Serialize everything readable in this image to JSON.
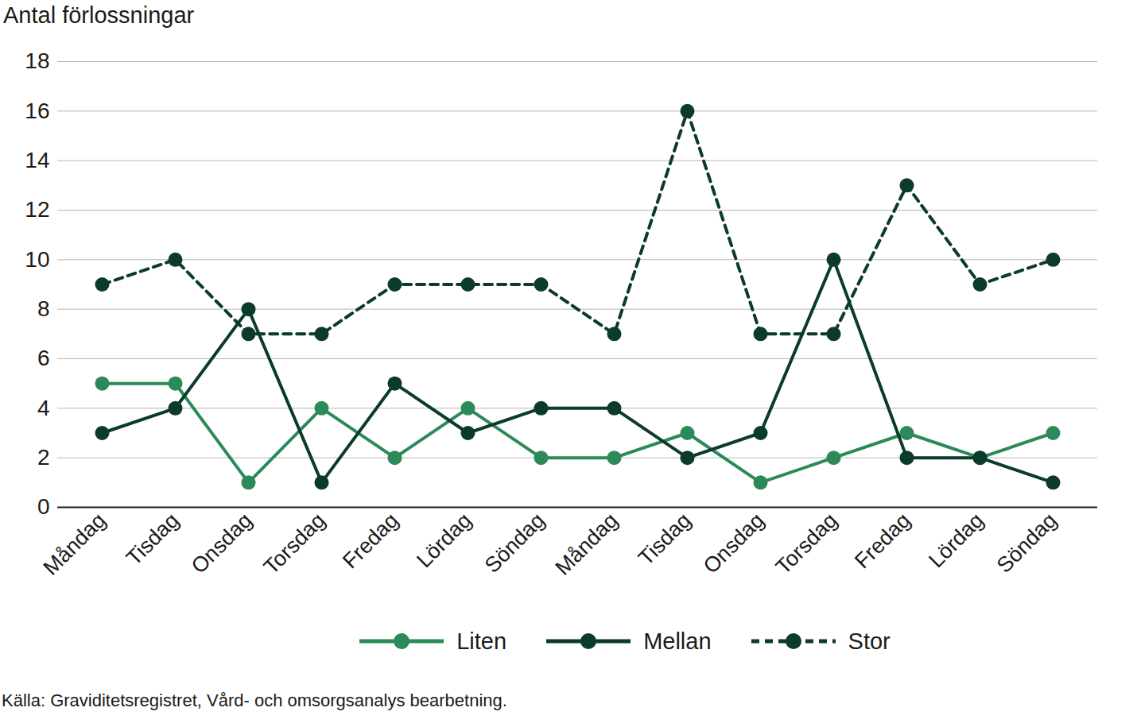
{
  "chart_data": {
    "type": "line",
    "ylabel": "Antal förlossningar",
    "caption": "Källa: Graviditetsregistret, Vård- och omsorgsanalys bearbetning.",
    "categories": [
      "Måndag",
      "Tisdag",
      "Onsdag",
      "Torsdag",
      "Fredag",
      "Lördag",
      "Söndag",
      "Måndag",
      "Tisdag",
      "Onsdag",
      "Torsdag",
      "Fredag",
      "Lördag",
      "Söndag"
    ],
    "series": [
      {
        "name": "Liten",
        "color": "#2b8a57",
        "marker": "circle",
        "line_style": "solid",
        "values": [
          5,
          5,
          1,
          4,
          2,
          4,
          2,
          2,
          3,
          1,
          2,
          3,
          2,
          3
        ]
      },
      {
        "name": "Mellan",
        "color": "#0b3b2a",
        "marker": "circle",
        "line_style": "solid",
        "values": [
          3,
          4,
          8,
          1,
          5,
          3,
          4,
          4,
          2,
          3,
          10,
          2,
          2,
          1
        ]
      },
      {
        "name": "Stor",
        "color": "#0b3b2a",
        "marker": "circle",
        "line_style": "dashed",
        "values": [
          9,
          10,
          7,
          7,
          9,
          9,
          9,
          7,
          16,
          7,
          7,
          13,
          9,
          10
        ]
      }
    ],
    "ylim": [
      0,
      18
    ],
    "yticks": [
      0,
      2,
      4,
      6,
      8,
      10,
      12,
      14,
      16,
      18
    ],
    "grid": true,
    "legend": "bottom"
  }
}
